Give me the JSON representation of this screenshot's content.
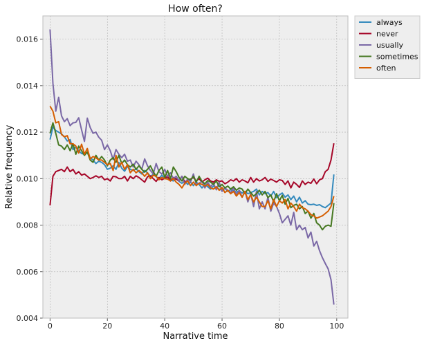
{
  "chart_data": {
    "type": "line",
    "title": "How often?",
    "xlabel": "Narrative time",
    "ylabel": "Relative frequency",
    "xlim": [
      -2.5,
      103.9
    ],
    "ylim": [
      0.004,
      0.017
    ],
    "xticks": [
      0,
      20,
      40,
      60,
      80,
      100
    ],
    "yticks": [
      0.004,
      0.006,
      0.008,
      0.01,
      0.012,
      0.014,
      0.016
    ],
    "xtick_labels": [
      "0",
      "20",
      "40",
      "60",
      "80",
      "100"
    ],
    "ytick_labels": [
      "0.004",
      "0.006",
      "0.008",
      "0.010",
      "0.012",
      "0.014",
      "0.016"
    ],
    "grid": true,
    "legend_position": "outside-top-right",
    "x": [
      0,
      1,
      2,
      3,
      4,
      5,
      6,
      7,
      8,
      9,
      10,
      11,
      12,
      13,
      14,
      15,
      16,
      17,
      18,
      19,
      20,
      21,
      22,
      23,
      24,
      25,
      26,
      27,
      28,
      29,
      30,
      31,
      32,
      33,
      34,
      35,
      36,
      37,
      38,
      39,
      40,
      41,
      42,
      43,
      44,
      45,
      46,
      47,
      48,
      49,
      50,
      51,
      52,
      53,
      54,
      55,
      56,
      57,
      58,
      59,
      60,
      61,
      62,
      63,
      64,
      65,
      66,
      67,
      68,
      69,
      70,
      71,
      72,
      73,
      74,
      75,
      76,
      77,
      78,
      79,
      80,
      81,
      82,
      83,
      84,
      85,
      86,
      87,
      88,
      89,
      90,
      91,
      92,
      93,
      94,
      95,
      96,
      97,
      98,
      99
    ],
    "series": [
      {
        "name": "always",
        "color": "#348ABD",
        "values": [
          0.01168,
          0.01222,
          0.01207,
          0.012,
          0.01192,
          0.0118,
          0.01162,
          0.01168,
          0.01125,
          0.01135,
          0.0112,
          0.01108,
          0.01105,
          0.01112,
          0.0109,
          0.0108,
          0.01065,
          0.01075,
          0.0107,
          0.0106,
          0.0104,
          0.01045,
          0.01055,
          0.0104,
          0.0107,
          0.01045,
          0.01032,
          0.01052,
          0.0104,
          0.01035,
          0.01042,
          0.0103,
          0.0102,
          0.01035,
          0.01025,
          0.0101,
          0.01018,
          0.01008,
          0.01,
          0.01015,
          0.01,
          0.01005,
          0.00995,
          0.0099,
          0.01,
          0.00988,
          0.0098,
          0.0099,
          0.00975,
          0.00985,
          0.0097,
          0.00985,
          0.00975,
          0.0096,
          0.00975,
          0.00965,
          0.00955,
          0.00968,
          0.0096,
          0.00955,
          0.0095,
          0.00958,
          0.00945,
          0.00952,
          0.00948,
          0.00942,
          0.00948,
          0.00938,
          0.00945,
          0.00935,
          0.0094,
          0.00945,
          0.00955,
          0.0093,
          0.00945,
          0.00935,
          0.0094,
          0.00925,
          0.00945,
          0.00918,
          0.0093,
          0.00938,
          0.0092,
          0.0093,
          0.0091,
          0.00925,
          0.009,
          0.0092,
          0.00895,
          0.00905,
          0.0089,
          0.00888,
          0.0089,
          0.00885,
          0.00888,
          0.0088,
          0.00875,
          0.00885,
          0.00895,
          0.01018
        ]
      },
      {
        "name": "never",
        "color": "#A60628",
        "values": [
          0.00885,
          0.0101,
          0.0103,
          0.01035,
          0.0104,
          0.0103,
          0.0105,
          0.0103,
          0.0104,
          0.0102,
          0.0103,
          0.01015,
          0.0102,
          0.0101,
          0.01,
          0.01005,
          0.01012,
          0.01005,
          0.0101,
          0.00995,
          0.01,
          0.0099,
          0.0101,
          0.01008,
          0.01,
          0.01,
          0.0101,
          0.0099,
          0.0101,
          0.01,
          0.01012,
          0.01005,
          0.00995,
          0.00985,
          0.01008,
          0.01012,
          0.01,
          0.00988,
          0.01005,
          0.00995,
          0.01002,
          0.0101,
          0.0099,
          0.01005,
          0.00998,
          0.0099,
          0.0101,
          0.00985,
          0.00992,
          0.00998,
          0.01005,
          0.0099,
          0.01,
          0.00985,
          0.00995,
          0.01002,
          0.0099,
          0.00985,
          0.00995,
          0.00988,
          0.0099,
          0.00978,
          0.00985,
          0.00995,
          0.0099,
          0.01,
          0.00985,
          0.00995,
          0.0099,
          0.00982,
          0.01005,
          0.00985,
          0.01,
          0.0099,
          0.00995,
          0.01005,
          0.00988,
          0.00998,
          0.00992,
          0.00985,
          0.00995,
          0.00992,
          0.00975,
          0.0099,
          0.0096,
          0.00985,
          0.00975,
          0.00962,
          0.0099,
          0.00975,
          0.00985,
          0.0098,
          0.00998,
          0.00978,
          0.00995,
          0.01,
          0.0103,
          0.0104,
          0.0108,
          0.01152
        ]
      },
      {
        "name": "usually",
        "color": "#7A68A6",
        "values": [
          0.01642,
          0.0141,
          0.0129,
          0.0135,
          0.0127,
          0.01245,
          0.01258,
          0.01228,
          0.0124,
          0.01242,
          0.01262,
          0.0121,
          0.0116,
          0.0126,
          0.0122,
          0.01195,
          0.012,
          0.01178,
          0.01165,
          0.01125,
          0.01145,
          0.0112,
          0.01082,
          0.01125,
          0.01105,
          0.0109,
          0.01105,
          0.01075,
          0.0108,
          0.0105,
          0.01075,
          0.0106,
          0.0104,
          0.01085,
          0.01055,
          0.01035,
          0.0102,
          0.01065,
          0.0103,
          0.0102,
          0.0104,
          0.0101,
          0.01025,
          0.01,
          0.0101,
          0.0099,
          0.0101,
          0.00975,
          0.01,
          0.00985,
          0.0102,
          0.00975,
          0.0098,
          0.0099,
          0.0096,
          0.00985,
          0.00965,
          0.0098,
          0.00952,
          0.00985,
          0.00945,
          0.0096,
          0.0095,
          0.0094,
          0.0096,
          0.0093,
          0.0095,
          0.0092,
          0.00945,
          0.009,
          0.00935,
          0.0088,
          0.00945,
          0.0087,
          0.009,
          0.0087,
          0.0092,
          0.0086,
          0.00895,
          0.0088,
          0.0085,
          0.0081,
          0.00825,
          0.0084,
          0.008,
          0.00855,
          0.0078,
          0.008,
          0.0078,
          0.0079,
          0.00745,
          0.0077,
          0.0071,
          0.0073,
          0.0069,
          0.0066,
          0.00635,
          0.00612,
          0.00565,
          0.00458
        ]
      },
      {
        "name": "sometimes",
        "color": "#467821",
        "values": [
          0.01195,
          0.0124,
          0.01195,
          0.01145,
          0.0114,
          0.01125,
          0.01145,
          0.0112,
          0.0115,
          0.01105,
          0.0114,
          0.0112,
          0.011,
          0.01115,
          0.0108,
          0.0107,
          0.011,
          0.0108,
          0.01095,
          0.0108,
          0.01055,
          0.0108,
          0.0109,
          0.0107,
          0.011,
          0.01065,
          0.0108,
          0.0106,
          0.0105,
          0.01062,
          0.0104,
          0.01055,
          0.0104,
          0.01028,
          0.0104,
          0.01055,
          0.0103,
          0.0101,
          0.01035,
          0.0105,
          0.01005,
          0.01035,
          0.01,
          0.0105,
          0.0103,
          0.01005,
          0.0099,
          0.0101,
          0.01,
          0.00995,
          0.0101,
          0.00985,
          0.0101,
          0.00988,
          0.00978,
          0.00992,
          0.00985,
          0.00975,
          0.0099,
          0.00965,
          0.00975,
          0.0096,
          0.00968,
          0.00955,
          0.00965,
          0.0095,
          0.0096,
          0.00955,
          0.00935,
          0.00955,
          0.0094,
          0.00925,
          0.00935,
          0.0095,
          0.0093,
          0.00945,
          0.00918,
          0.0093,
          0.009,
          0.00935,
          0.00905,
          0.00928,
          0.0089,
          0.00915,
          0.00875,
          0.00885,
          0.0089,
          0.0087,
          0.0088,
          0.0085,
          0.0086,
          0.0083,
          0.0085,
          0.0081,
          0.008,
          0.0078,
          0.00795,
          0.008,
          0.00795,
          0.00895
        ]
      },
      {
        "name": "often",
        "color": "#D55E00",
        "values": [
          0.01312,
          0.0129,
          0.0124,
          0.01245,
          0.0119,
          0.0118,
          0.01185,
          0.0115,
          0.0115,
          0.0114,
          0.0111,
          0.01148,
          0.01105,
          0.0113,
          0.01085,
          0.01095,
          0.0109,
          0.0108,
          0.0108,
          0.0107,
          0.0106,
          0.01065,
          0.01035,
          0.011,
          0.0105,
          0.0107,
          0.0104,
          0.0106,
          0.01025,
          0.0104,
          0.01025,
          0.01035,
          0.01025,
          0.0101,
          0.01025,
          0.01,
          0.01015,
          0.0101,
          0.00995,
          0.01005,
          0.01,
          0.00998,
          0.0099,
          0.01,
          0.00985,
          0.00975,
          0.0096,
          0.0098,
          0.0099,
          0.0097,
          0.00985,
          0.0097,
          0.0098,
          0.00975,
          0.00968,
          0.00975,
          0.0096,
          0.00955,
          0.00965,
          0.0095,
          0.00962,
          0.0094,
          0.0095,
          0.00935,
          0.00945,
          0.00925,
          0.0094,
          0.0092,
          0.00945,
          0.0091,
          0.0093,
          0.009,
          0.0092,
          0.009,
          0.0088,
          0.0088,
          0.00905,
          0.0087,
          0.0091,
          0.0088,
          0.00905,
          0.00895,
          0.0091,
          0.0087,
          0.00895,
          0.0088,
          0.0086,
          0.0089,
          0.00875,
          0.0087,
          0.0086,
          0.00845,
          0.0084,
          0.0083,
          0.00835,
          0.0084,
          0.0085,
          0.0086,
          0.0088,
          0.00925
        ]
      }
    ]
  }
}
